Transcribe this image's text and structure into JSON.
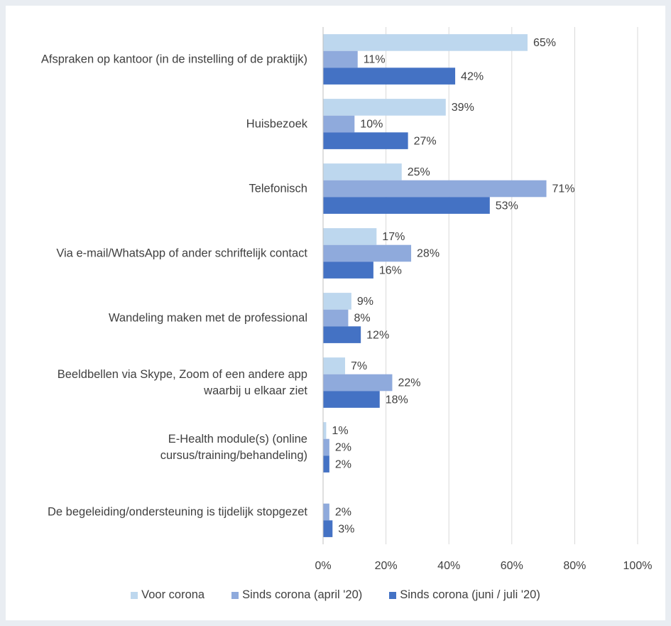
{
  "chart_data": {
    "type": "bar",
    "orientation": "horizontal",
    "categories": [
      "Afspraken op kantoor (in de instelling of de praktijk)",
      "Huisbezoek",
      "Telefonisch",
      "Via e-mail/WhatsApp of ander schriftelijk contact",
      "Wandeling maken met de professional",
      "Beeldbellen via Skype, Zoom of een andere app waarbij u elkaar ziet",
      "E-Health module(s) (online cursus/training/behandeling)",
      "De begeleiding/ondersteuning is tijdelijk stopgezet"
    ],
    "series": [
      {
        "name": "Voor corona",
        "color": "#bdd7ee",
        "values": [
          65,
          39,
          25,
          17,
          9,
          7,
          1,
          null
        ],
        "value_labels": [
          "65%",
          "39%",
          "25%",
          "17%",
          "9%",
          "7%",
          "1%",
          null
        ]
      },
      {
        "name": "Sinds corona (april '20)",
        "color": "#8faadc",
        "values": [
          11,
          10,
          71,
          28,
          8,
          22,
          2,
          2
        ],
        "value_labels": [
          "11%",
          "10%",
          "71%",
          "28%",
          "8%",
          "22%",
          "2%",
          "2%"
        ]
      },
      {
        "name": "Sinds corona (juni / juli '20)",
        "color": "#4472c4",
        "values": [
          42,
          27,
          53,
          16,
          12,
          18,
          2,
          3
        ],
        "value_labels": [
          "42%",
          "27%",
          "53%",
          "16%",
          "12%",
          "18%",
          "2%",
          "3%"
        ]
      }
    ],
    "xlim": [
      0,
      100
    ],
    "xticks": [
      {
        "value": 0,
        "label": "0%"
      },
      {
        "value": 20,
        "label": "20%"
      },
      {
        "value": 40,
        "label": "40%"
      },
      {
        "value": 60,
        "label": "60%"
      },
      {
        "value": 80,
        "label": "80%"
      },
      {
        "value": 100,
        "label": "100%"
      }
    ],
    "grid": true,
    "legend": "bottom"
  }
}
